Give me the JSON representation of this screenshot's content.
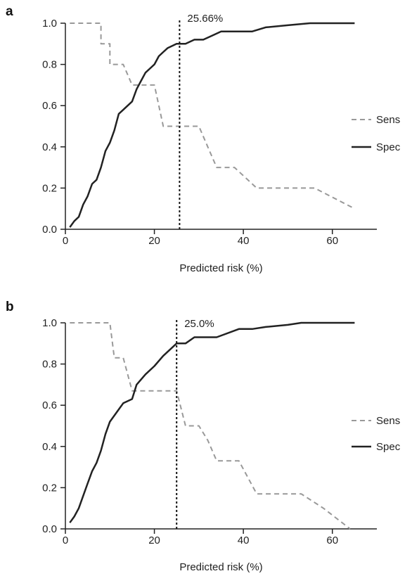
{
  "chart_data": [
    {
      "panel": "a",
      "type": "line",
      "xlabel": "Predicted risk (%)",
      "ylabel": "",
      "xlim": [
        0,
        70
      ],
      "ylim": [
        0,
        1
      ],
      "xticks": [
        "0",
        "20",
        "40",
        "60"
      ],
      "yticks": [
        "0.0",
        "0.2",
        "0.4",
        "0.6",
        "0.8",
        "1.0"
      ],
      "cutoff": {
        "x": 25.66,
        "label": "25.66%"
      },
      "legend_position": "right",
      "grid": false,
      "series": [
        {
          "name": "Sens",
          "color": "#999999",
          "style": "dashed",
          "points": [
            [
              1,
              1.0
            ],
            [
              8,
              1.0
            ],
            [
              8,
              0.9
            ],
            [
              10,
              0.9
            ],
            [
              10,
              0.8
            ],
            [
              13,
              0.8
            ],
            [
              15,
              0.7
            ],
            [
              16,
              0.7
            ],
            [
              20,
              0.7
            ],
            [
              21,
              0.6
            ],
            [
              22,
              0.5
            ],
            [
              30,
              0.5
            ],
            [
              32,
              0.4
            ],
            [
              34,
              0.3
            ],
            [
              38,
              0.3
            ],
            [
              43,
              0.2
            ],
            [
              56,
              0.2
            ],
            [
              65,
              0.1
            ]
          ]
        },
        {
          "name": "Spec",
          "color": "#222222",
          "style": "solid",
          "points": [
            [
              1,
              0.01
            ],
            [
              2,
              0.04
            ],
            [
              3,
              0.06
            ],
            [
              4,
              0.12
            ],
            [
              5,
              0.16
            ],
            [
              6,
              0.22
            ],
            [
              7,
              0.24
            ],
            [
              8,
              0.3
            ],
            [
              9,
              0.38
            ],
            [
              10,
              0.42
            ],
            [
              11,
              0.48
            ],
            [
              12,
              0.56
            ],
            [
              13,
              0.58
            ],
            [
              14,
              0.6
            ],
            [
              15,
              0.62
            ],
            [
              16,
              0.68
            ],
            [
              17,
              0.72
            ],
            [
              18,
              0.76
            ],
            [
              19,
              0.78
            ],
            [
              20,
              0.8
            ],
            [
              21,
              0.84
            ],
            [
              22,
              0.86
            ],
            [
              23,
              0.88
            ],
            [
              25,
              0.9
            ],
            [
              27,
              0.9
            ],
            [
              29,
              0.92
            ],
            [
              31,
              0.92
            ],
            [
              33,
              0.94
            ],
            [
              35,
              0.96
            ],
            [
              38,
              0.96
            ],
            [
              42,
              0.96
            ],
            [
              45,
              0.98
            ],
            [
              50,
              0.99
            ],
            [
              55,
              1.0
            ],
            [
              65,
              1.0
            ]
          ]
        }
      ]
    },
    {
      "panel": "b",
      "type": "line",
      "xlabel": "Predicted risk (%)",
      "ylabel": "",
      "xlim": [
        0,
        70
      ],
      "ylim": [
        0,
        1
      ],
      "xticks": [
        "0",
        "20",
        "40",
        "60"
      ],
      "yticks": [
        "0.0",
        "0.2",
        "0.4",
        "0.6",
        "0.8",
        "1.0"
      ],
      "cutoff": {
        "x": 25.0,
        "label": "25.0%"
      },
      "legend_position": "right",
      "grid": false,
      "series": [
        {
          "name": "Sens",
          "color": "#999999",
          "style": "dashed",
          "points": [
            [
              1,
              1.0
            ],
            [
              10,
              1.0
            ],
            [
              11,
              0.83
            ],
            [
              13,
              0.83
            ],
            [
              15,
              0.67
            ],
            [
              25,
              0.67
            ],
            [
              27,
              0.5
            ],
            [
              30,
              0.5
            ],
            [
              32,
              0.43
            ],
            [
              34,
              0.33
            ],
            [
              39,
              0.33
            ],
            [
              43,
              0.17
            ],
            [
              53,
              0.17
            ],
            [
              58,
              0.1
            ],
            [
              64,
              0.0
            ]
          ]
        },
        {
          "name": "Spec",
          "color": "#222222",
          "style": "solid",
          "points": [
            [
              1,
              0.03
            ],
            [
              2,
              0.06
            ],
            [
              3,
              0.1
            ],
            [
              4,
              0.16
            ],
            [
              5,
              0.22
            ],
            [
              6,
              0.28
            ],
            [
              7,
              0.32
            ],
            [
              8,
              0.38
            ],
            [
              9,
              0.46
            ],
            [
              10,
              0.52
            ],
            [
              11,
              0.55
            ],
            [
              12,
              0.58
            ],
            [
              13,
              0.61
            ],
            [
              15,
              0.63
            ],
            [
              16,
              0.7
            ],
            [
              18,
              0.75
            ],
            [
              20,
              0.79
            ],
            [
              22,
              0.84
            ],
            [
              24,
              0.88
            ],
            [
              25,
              0.9
            ],
            [
              27,
              0.9
            ],
            [
              29,
              0.93
            ],
            [
              31,
              0.93
            ],
            [
              34,
              0.93
            ],
            [
              39,
              0.97
            ],
            [
              42,
              0.97
            ],
            [
              45,
              0.98
            ],
            [
              50,
              0.99
            ],
            [
              53,
              1.0
            ],
            [
              65,
              1.0
            ]
          ]
        }
      ]
    }
  ]
}
